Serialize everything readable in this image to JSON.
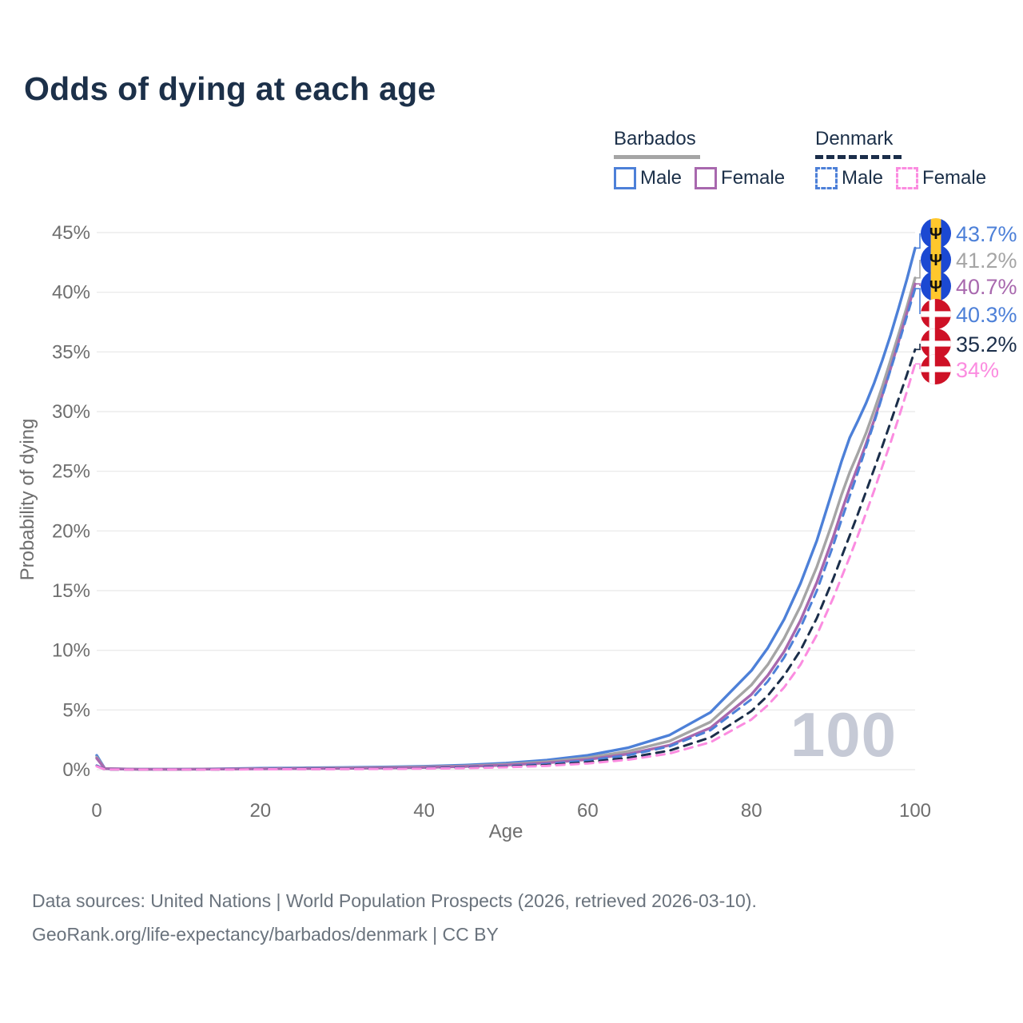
{
  "title": "Odds of dying at each age",
  "watermark_age": "100",
  "legend": {
    "groups": [
      {
        "label": "Barbados",
        "line_style": "solid",
        "underline_color": "#a5a5a5",
        "items": [
          {
            "label": "Male",
            "color": "#4d80d8",
            "dashed": false
          },
          {
            "label": "Female",
            "color": "#a868ae",
            "dashed": false
          }
        ]
      },
      {
        "label": "Denmark",
        "line_style": "dashed",
        "underline_color": "#1b2e4a",
        "items": [
          {
            "label": "Male",
            "color": "#4d80d8",
            "dashed": true
          },
          {
            "label": "Female",
            "color": "#fb8ce0",
            "dashed": true
          }
        ]
      }
    ]
  },
  "chart_data": {
    "type": "line",
    "title": "Odds of dying at each age",
    "xlabel": "Age",
    "ylabel": "Probability of dying",
    "xlim": [
      0,
      100
    ],
    "ylim": [
      0,
      45
    ],
    "grid": true,
    "x_tick_values": [
      0,
      20,
      40,
      60,
      80,
      100
    ],
    "x_tick_labels": [
      "0",
      "20",
      "40",
      "60",
      "80",
      "100"
    ],
    "y_tick_values": [
      0,
      5,
      10,
      15,
      20,
      25,
      30,
      35,
      40,
      45
    ],
    "y_tick_labels": [
      "0%",
      "5%",
      "10%",
      "15%",
      "20%",
      "25%",
      "30%",
      "35%",
      "40%",
      "45%"
    ],
    "x": [
      0,
      1,
      5,
      10,
      15,
      20,
      25,
      30,
      35,
      40,
      45,
      50,
      55,
      60,
      65,
      70,
      75,
      80,
      82,
      84,
      86,
      88,
      90,
      91,
      92,
      93,
      94,
      95,
      96,
      97,
      98,
      99,
      100
    ],
    "series": [
      {
        "name": "Barbados Male",
        "color": "#4d80d8",
        "dash": false,
        "flag": "barbados",
        "end_label": "43.7%",
        "values": [
          1.2,
          0.09,
          0.04,
          0.04,
          0.07,
          0.12,
          0.15,
          0.18,
          0.22,
          0.28,
          0.38,
          0.55,
          0.8,
          1.2,
          1.85,
          2.9,
          4.8,
          8.3,
          10.2,
          12.6,
          15.6,
          19.2,
          23.6,
          25.8,
          27.8,
          29.2,
          30.7,
          32.4,
          34.3,
          36.4,
          38.7,
          41.1,
          43.7
        ]
      },
      {
        "name": "Barbados Total",
        "color": "#a5a5a5",
        "dash": false,
        "flag": "barbados",
        "end_label": "41.2%",
        "values": [
          1.05,
          0.085,
          0.035,
          0.035,
          0.055,
          0.09,
          0.115,
          0.14,
          0.175,
          0.225,
          0.31,
          0.45,
          0.66,
          1.0,
          1.55,
          2.4,
          4.0,
          7.1,
          8.8,
          11.0,
          13.7,
          17.0,
          20.9,
          23.0,
          24.9,
          26.5,
          28.2,
          30.1,
          32.1,
          34.3,
          36.5,
          38.8,
          41.2
        ]
      },
      {
        "name": "Barbados Female",
        "color": "#a868ae",
        "dash": false,
        "flag": "barbados",
        "end_label": "40.7%",
        "values": [
          0.95,
          0.08,
          0.03,
          0.03,
          0.045,
          0.065,
          0.085,
          0.11,
          0.14,
          0.18,
          0.26,
          0.38,
          0.56,
          0.85,
          1.32,
          2.05,
          3.5,
          6.3,
          7.9,
          9.9,
          12.5,
          15.7,
          19.5,
          21.6,
          23.6,
          25.4,
          27.3,
          29.3,
          31.4,
          33.6,
          35.9,
          38.3,
          40.7
        ]
      },
      {
        "name": "Denmark Male",
        "color": "#4d80d8",
        "dash": true,
        "flag": "denmark",
        "end_label": "40.3%",
        "values": [
          0.35,
          0.025,
          0.01,
          0.012,
          0.025,
          0.055,
          0.065,
          0.075,
          0.09,
          0.125,
          0.19,
          0.29,
          0.47,
          0.77,
          1.22,
          1.95,
          3.3,
          5.9,
          7.4,
          9.4,
          11.9,
          15.0,
          18.8,
          20.9,
          22.9,
          24.9,
          27.0,
          29.1,
          31.3,
          33.5,
          35.7,
          38.0,
          40.3
        ]
      },
      {
        "name": "Denmark Total",
        "color": "#1b2e4a",
        "dash": true,
        "flag": "denmark",
        "end_label": "35.2%",
        "values": [
          0.3,
          0.02,
          0.009,
          0.01,
          0.02,
          0.04,
          0.05,
          0.06,
          0.075,
          0.105,
          0.155,
          0.24,
          0.38,
          0.62,
          1.0,
          1.6,
          2.7,
          4.9,
          6.2,
          7.9,
          10.0,
          12.7,
          16.0,
          17.8,
          19.6,
          21.4,
          23.3,
          25.2,
          27.1,
          29.1,
          31.1,
          33.1,
          35.2
        ]
      },
      {
        "name": "Denmark Female",
        "color": "#fb8ce0",
        "dash": true,
        "flag": "denmark",
        "end_label": "34%",
        "values": [
          0.28,
          0.02,
          0.008,
          0.009,
          0.016,
          0.03,
          0.038,
          0.048,
          0.062,
          0.085,
          0.13,
          0.2,
          0.32,
          0.52,
          0.84,
          1.35,
          2.3,
          4.2,
          5.4,
          6.9,
          8.8,
          11.3,
          14.4,
          16.1,
          17.8,
          19.6,
          21.5,
          23.4,
          25.4,
          27.4,
          29.5,
          31.7,
          34.0
        ]
      }
    ],
    "flag_colors": {
      "barbados_blue": "#1b49d2",
      "barbados_gold": "#ffc72c",
      "barbados_trident": "#111111",
      "denmark_red": "#ce1126",
      "denmark_cross": "#ffffff"
    }
  },
  "footer": {
    "line1": "Data sources: United Nations | World Population Prospects (2026, retrieved 2026-03-10).",
    "line2": "GeoRank.org/life-expectancy/barbados/denmark | CC BY"
  }
}
